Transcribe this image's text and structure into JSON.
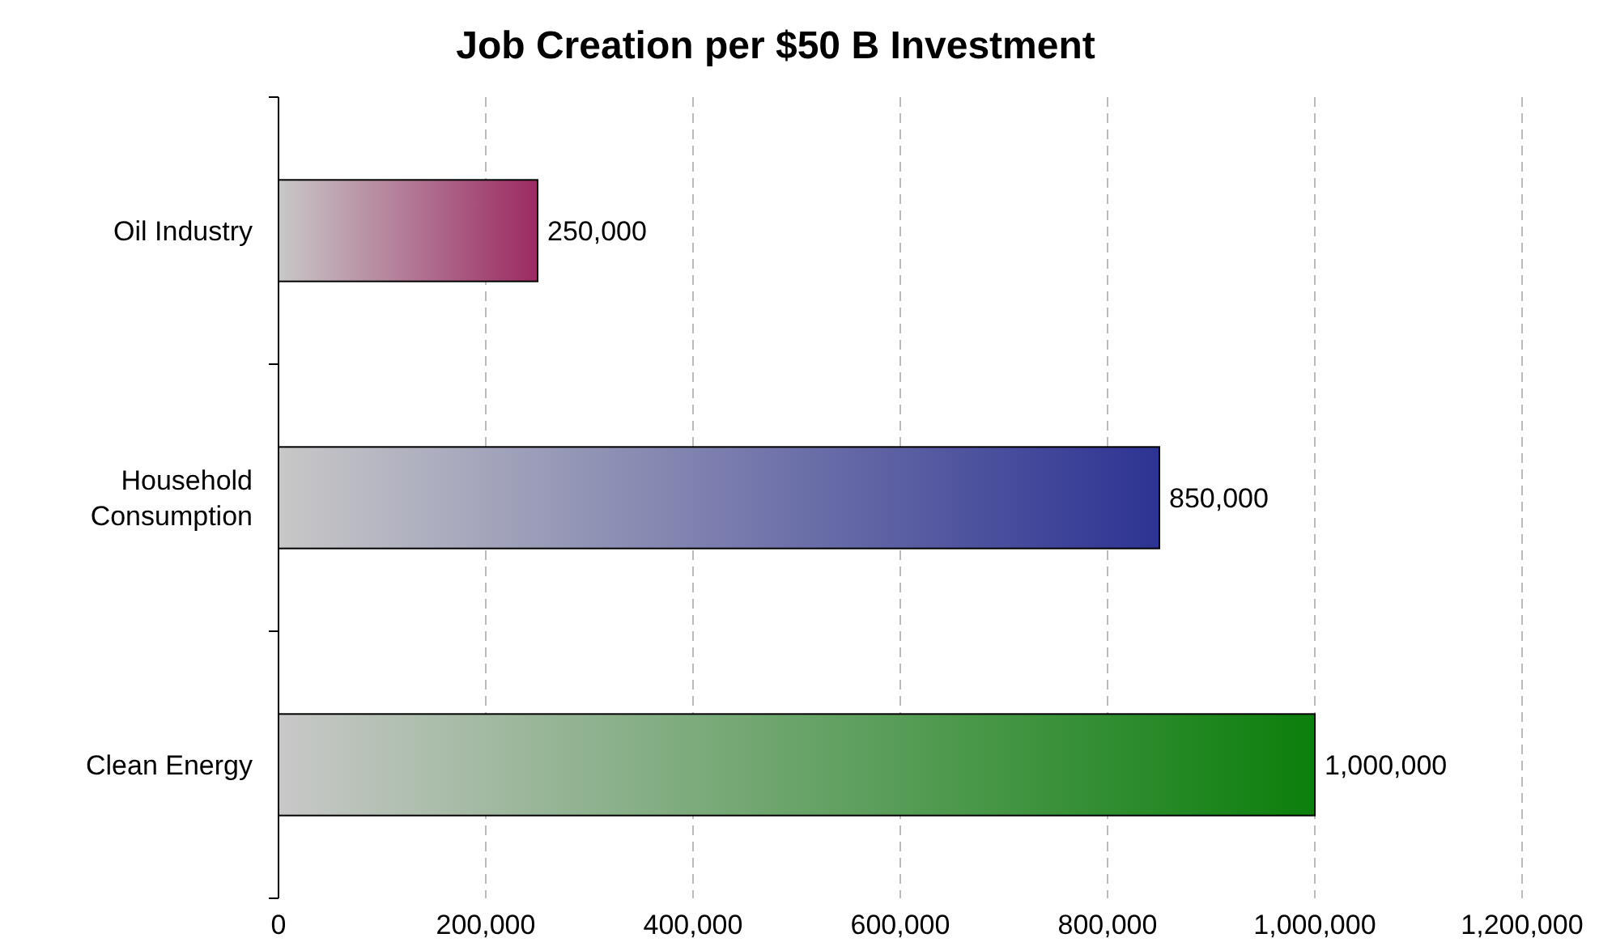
{
  "chart_data": {
    "type": "bar",
    "orientation": "horizontal",
    "title": "Job Creation per $50 B Investment",
    "categories": [
      "Oil Industry",
      "Household Consumption",
      "Clean Energy"
    ],
    "values": [
      250000,
      850000,
      1000000
    ],
    "colors": [
      "#9c2a62",
      "#2d3393",
      "#0b7f0b"
    ],
    "value_labels": [
      "250,000",
      "850,000",
      "1,000,000"
    ],
    "xlim": [
      0,
      1200000
    ],
    "xticks": [
      {
        "value": 0,
        "label": "0"
      },
      {
        "value": 200000,
        "label": "200,000"
      },
      {
        "value": 400000,
        "label": "400,000"
      },
      {
        "value": 600000,
        "label": "600,000"
      },
      {
        "value": 800000,
        "label": "800,000"
      },
      {
        "value": 1000000,
        "label": "1,000,000"
      },
      {
        "value": 1200000,
        "label": "1,200,000"
      }
    ],
    "grid": "x"
  }
}
